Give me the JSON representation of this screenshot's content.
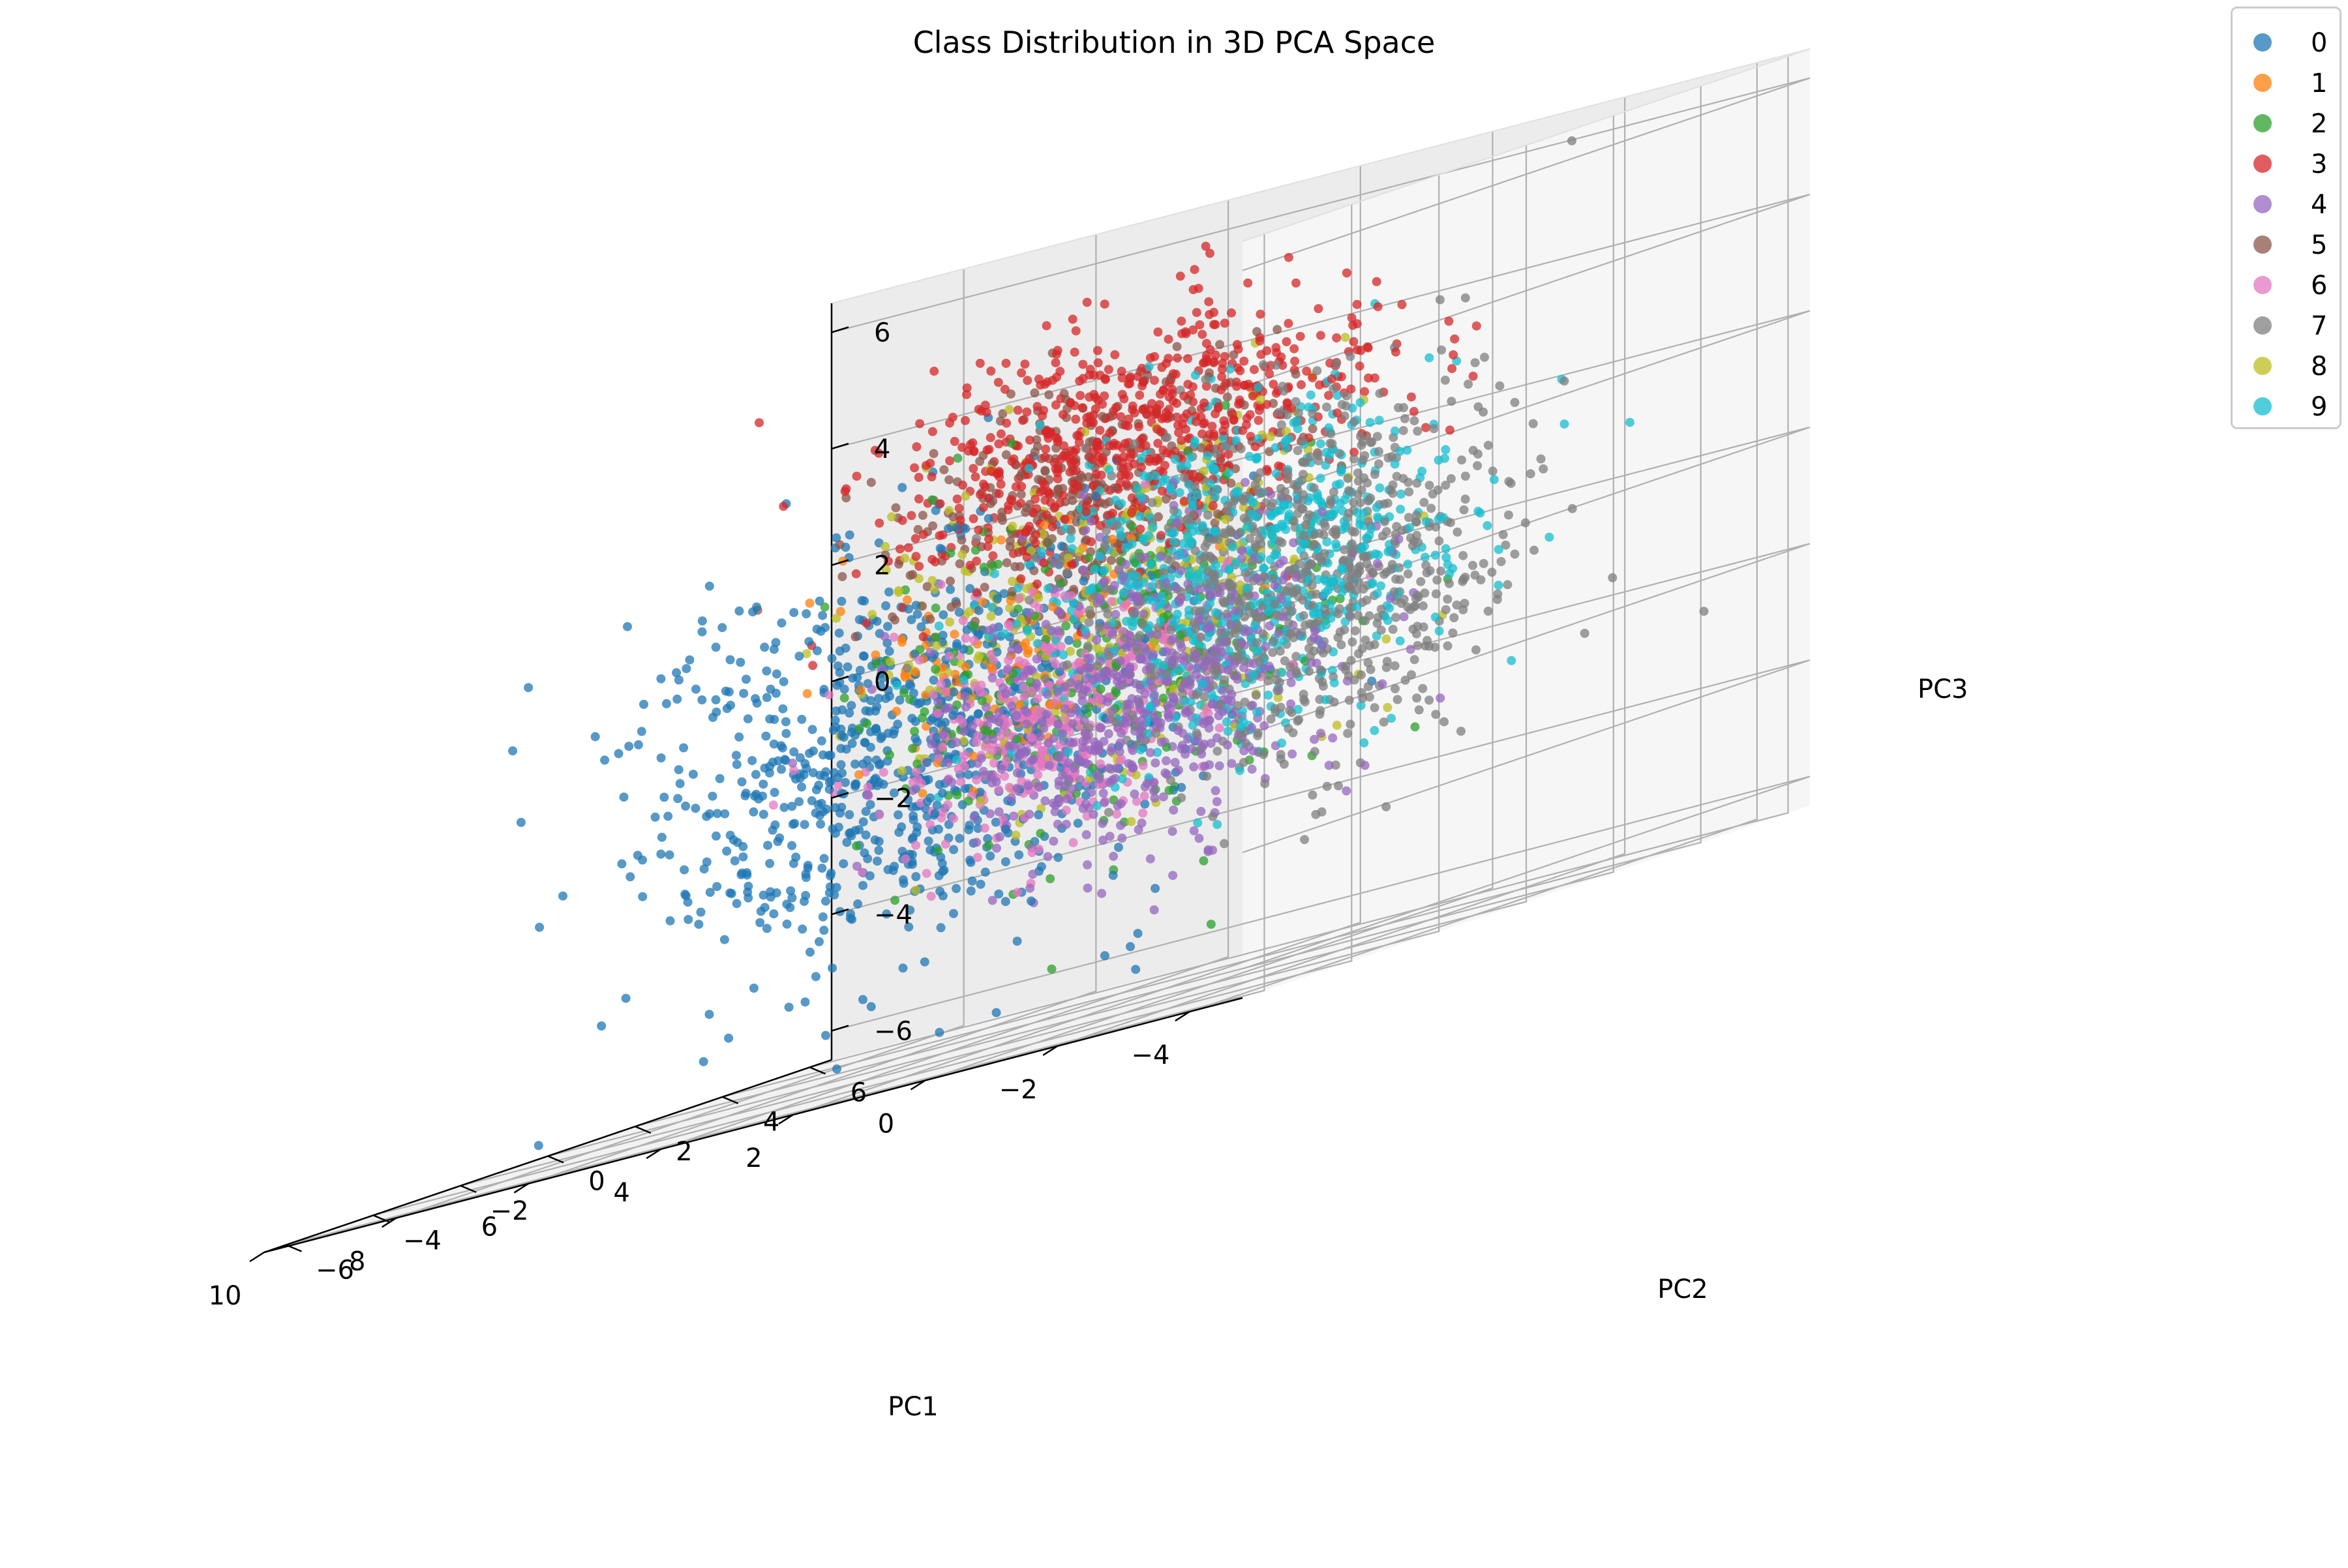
{
  "chart_data": {
    "type": "scatter",
    "title": "Class Distribution in 3D PCA Space",
    "xlabel": "PC1",
    "ylabel": "PC2",
    "zlabel": "PC3",
    "xlim": [
      -4.8,
      10
    ],
    "ylim": [
      -6.5,
      6.5
    ],
    "zlim": [
      -6.5,
      6.5
    ],
    "xticks": [
      "−4",
      "−2",
      "0",
      "2",
      "4",
      "6",
      "8",
      "10"
    ],
    "yticks": [
      "−6",
      "−4",
      "−2",
      "0",
      "2",
      "4",
      "6"
    ],
    "zticks": [
      "−6",
      "−4",
      "−2",
      "0",
      "2",
      "4",
      "6"
    ],
    "grid": true,
    "legend_position": "top-right",
    "series": [
      {
        "name": "0",
        "color": "#1f77b4",
        "center": [
          4.8,
          0.5,
          -1.2
        ],
        "spread": [
          1.8,
          1.6,
          1.7
        ]
      },
      {
        "name": "1",
        "color": "#ff7f0e",
        "center": [
          3.0,
          0.0,
          0.0
        ],
        "spread": [
          1.0,
          1.0,
          1.0
        ]
      },
      {
        "name": "2",
        "color": "#2ca02c",
        "center": [
          2.0,
          0.5,
          -0.5
        ],
        "spread": [
          1.5,
          1.5,
          1.5
        ]
      },
      {
        "name": "3",
        "color": "#d62728",
        "center": [
          1.5,
          0.5,
          3.2
        ],
        "spread": [
          1.5,
          1.5,
          1.0
        ]
      },
      {
        "name": "4",
        "color": "#9467bd",
        "center": [
          0.0,
          -1.5,
          -1.2
        ],
        "spread": [
          1.2,
          1.3,
          1.3
        ]
      },
      {
        "name": "5",
        "color": "#8c564b",
        "center": [
          2.8,
          1.5,
          2.2
        ],
        "spread": [
          1.3,
          1.2,
          1.0
        ]
      },
      {
        "name": "6",
        "color": "#e377c2",
        "center": [
          2.0,
          -0.5,
          -1.2
        ],
        "spread": [
          1.0,
          1.0,
          1.0
        ]
      },
      {
        "name": "7",
        "color": "#7f7f7f",
        "center": [
          -1.5,
          0.0,
          0.0
        ],
        "spread": [
          1.2,
          1.5,
          1.5
        ]
      },
      {
        "name": "8",
        "color": "#bcbd22",
        "center": [
          2.0,
          1.0,
          0.5
        ],
        "spread": [
          1.5,
          1.5,
          1.5
        ]
      },
      {
        "name": "9",
        "color": "#17becf",
        "center": [
          -0.5,
          0.0,
          0.5
        ],
        "spread": [
          1.3,
          1.4,
          1.4
        ]
      }
    ]
  }
}
